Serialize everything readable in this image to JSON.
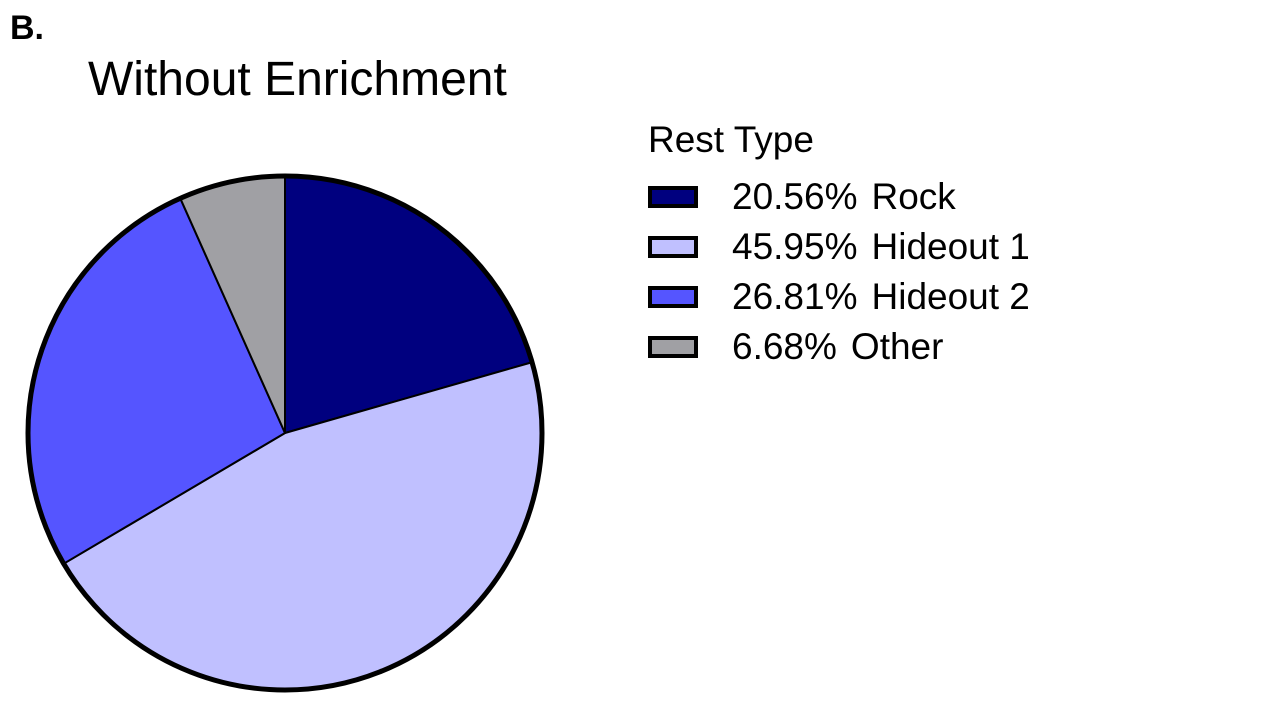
{
  "panel_label": "B.",
  "chart_data": {
    "type": "pie",
    "title": "Without Enrichment",
    "legend_title": "Rest Type",
    "legend_position": "right",
    "slices": [
      {
        "label": "Rock",
        "value": 20.56,
        "display": "20.56%",
        "color": "#00007f"
      },
      {
        "label": "Hideout 1",
        "value": 45.95,
        "display": "45.95%",
        "color": "#c0c0ff"
      },
      {
        "label": "Hideout 2",
        "value": 26.81,
        "display": "26.81%",
        "color": "#5555ff"
      },
      {
        "label": "Other",
        "value": 6.68,
        "display": "6.68%",
        "color": "#a0a0a4"
      }
    ]
  }
}
